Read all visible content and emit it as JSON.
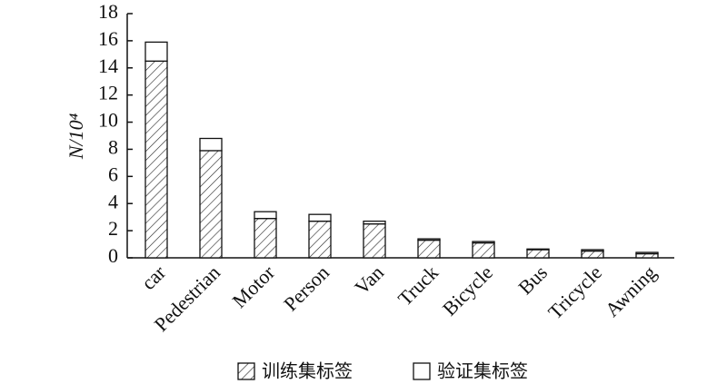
{
  "chart_data": {
    "type": "stacked-bar",
    "y_label": "N/10⁴",
    "categories": [
      "car",
      "Pedestrian",
      "Motor",
      "Person",
      "Van",
      "Truck",
      "Bicycle",
      "Bus",
      "Tricycle",
      "Awning"
    ],
    "series": [
      {
        "name": "训练集标签",
        "color": "#ffffff",
        "pattern": "hatch",
        "values": [
          14.5,
          7.9,
          2.9,
          2.7,
          2.5,
          1.3,
          1.1,
          0.6,
          0.5,
          0.3
        ]
      },
      {
        "name": "验证集标签",
        "color": "#ffffff",
        "pattern": "none",
        "values": [
          1.4,
          0.9,
          0.5,
          0.5,
          0.2,
          0.1,
          0.1,
          0.05,
          0.1,
          0.1
        ]
      }
    ],
    "ylim": [
      0,
      18
    ],
    "yticks": [
      0,
      2,
      4,
      6,
      8,
      10,
      12,
      14,
      16,
      18
    ],
    "grid": false
  }
}
